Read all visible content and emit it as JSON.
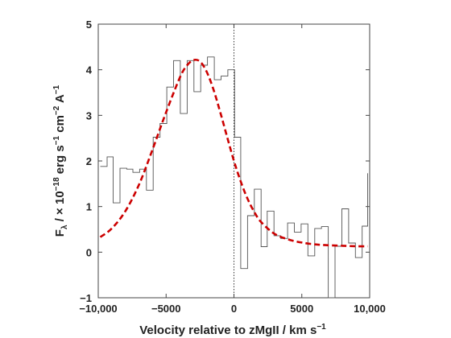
{
  "chart_data": {
    "type": "line",
    "xlim": [
      -10000,
      10000
    ],
    "ylim": [
      -1,
      5
    ],
    "xticks": [
      -10000,
      -5000,
      0,
      5000,
      10000
    ],
    "xtick_labels": [
      "−10,000",
      "−5000",
      "0",
      "5000",
      "10,000"
    ],
    "yticks": [
      -1,
      0,
      1,
      2,
      3,
      4,
      5
    ],
    "ytick_labels": [
      "−1",
      "0",
      "1",
      "2",
      "3",
      "4",
      "5"
    ],
    "xlabel": {
      "main": "Velocity relative to zMgII",
      "unit_prefix": " / km s",
      "unit_exp": "−1"
    },
    "ylabel": {
      "main": "F",
      "sub": "λ",
      "unit_prefix": "  / × 10",
      "exp1": "−18",
      "mid1": " erg s",
      "exp2": "−1",
      "mid2": " cm",
      "exp3": "−2",
      "mid3": " A",
      "exp4": "−1"
    },
    "grid": false,
    "vline_x": 0,
    "series": [
      {
        "style": "step",
        "color": "#555555",
        "x_edges": [
          -9850,
          -9350,
          -8900,
          -8400,
          -7900,
          -7450,
          -6950,
          -6450,
          -5950,
          -5450,
          -4950,
          -4450,
          -3950,
          -3450,
          -2950,
          -2450,
          -1950,
          -1450,
          -950,
          -450,
          50,
          500,
          1000,
          1500,
          2000,
          2450,
          2950,
          3450,
          3950,
          4450,
          4950,
          5450,
          5950,
          6450,
          6950,
          7450,
          7950,
          8450,
          8950,
          9450,
          9850
        ],
        "values": [
          1.88,
          2.09,
          1.08,
          1.84,
          1.82,
          1.75,
          1.82,
          1.36,
          2.52,
          2.82,
          3.62,
          4.2,
          3.04,
          4.2,
          3.52,
          4.1,
          4.28,
          3.78,
          3.86,
          4.0,
          2.52,
          -0.36,
          0.8,
          1.38,
          0.12,
          0.9,
          0.36,
          0.3,
          0.64,
          0.44,
          0.62,
          -0.08,
          0.52,
          0.56,
          -1.0,
          0.13,
          0.95,
          0.2,
          -0.12,
          0.57,
          1.73
        ]
      },
      {
        "style": "dashed",
        "color": "#cc0000",
        "x": [
          -9850,
          -9000,
          -8000,
          -7000,
          -6000,
          -5000,
          -4000,
          -3500,
          -3000,
          -2500,
          -2000,
          -1500,
          -1000,
          -500,
          0,
          500,
          1000,
          1500,
          2000,
          3000,
          4000,
          5000,
          6000,
          7000,
          8000,
          9000,
          9850
        ],
        "y": [
          0.33,
          0.52,
          0.9,
          1.48,
          2.25,
          3.07,
          3.82,
          4.08,
          4.21,
          4.18,
          3.95,
          3.56,
          3.06,
          2.52,
          2.0,
          1.55,
          1.17,
          0.88,
          0.66,
          0.4,
          0.28,
          0.21,
          0.17,
          0.15,
          0.14,
          0.13,
          0.13
        ]
      }
    ]
  }
}
